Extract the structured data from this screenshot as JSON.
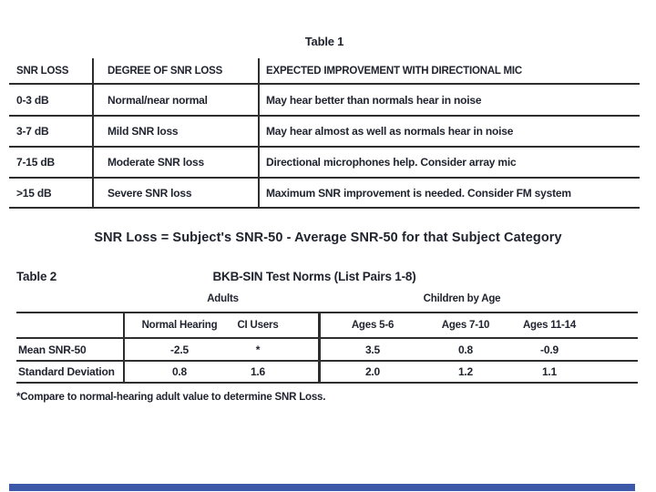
{
  "page": {
    "bg_color": "#ffffff",
    "text_color": "#20242f",
    "line_color": "#2e2e2e",
    "accent_bar_color": "#3b58a9"
  },
  "table1": {
    "title": "Table 1",
    "headers": [
      "SNR LOSS",
      "DEGREE OF SNR LOSS",
      "EXPECTED IMPROVEMENT WITH DIRECTIONAL MIC"
    ],
    "rows": [
      {
        "snr": "0-3 dB",
        "degree": "Normal/near normal",
        "improvement": "May hear better than normals hear in noise"
      },
      {
        "snr": "3-7 dB",
        "degree": "Mild SNR loss",
        "improvement": "May hear almost as well as normals hear in noise"
      },
      {
        "snr": "7-15 dB",
        "degree": "Moderate SNR loss",
        "improvement": "Directional microphones help. Consider array mic"
      },
      {
        "snr": ">15 dB",
        "degree": "Severe SNR loss",
        "improvement": "Maximum SNR improvement is needed. Consider FM system"
      }
    ]
  },
  "formula": "SNR Loss = Subject's SNR-50 - Average SNR-50 for that Subject Category",
  "table2": {
    "label": "Table 2",
    "title": "BKB-SIN Test Norms (List Pairs 1-8)",
    "group_headers": [
      "Adults",
      "Children by Age"
    ],
    "column_headers": [
      "Normal Hearing",
      "CI Users",
      "Ages 5-6",
      "Ages 7-10",
      "Ages 11-14"
    ],
    "rows": [
      {
        "label": "Mean SNR-50",
        "values": [
          "-2.5",
          "*",
          "3.5",
          "0.8",
          "-0.9"
        ]
      },
      {
        "label": "Standard Deviation",
        "values": [
          "0.8",
          "1.6",
          "2.0",
          "1.2",
          "1.1"
        ]
      }
    ],
    "footnote": "*Compare to normal-hearing adult value to determine SNR Loss."
  }
}
